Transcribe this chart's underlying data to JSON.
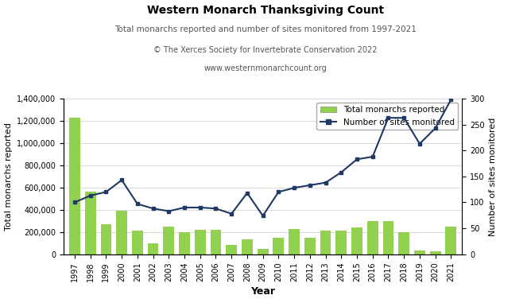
{
  "title": "Western Monarch Thanksgiving Count",
  "subtitle": "Total monarchs reported and number of sites monitored from 1997-2021",
  "credit_line1": "© The Xerces Society for Invertebrate Conservation 2022",
  "credit_line2": "www.westernmonarchcount.org",
  "years": [
    1997,
    1998,
    1999,
    2000,
    2001,
    2002,
    2003,
    2004,
    2005,
    2006,
    2007,
    2008,
    2009,
    2010,
    2011,
    2012,
    2013,
    2014,
    2015,
    2016,
    2017,
    2018,
    2019,
    2020,
    2021
  ],
  "monarchs": [
    1230000,
    560000,
    270000,
    390000,
    215000,
    95000,
    250000,
    200000,
    220000,
    220000,
    80000,
    130000,
    50000,
    145000,
    225000,
    150000,
    215000,
    215000,
    240000,
    295000,
    300000,
    195000,
    30000,
    28000,
    250000
  ],
  "sites": [
    100,
    113,
    120,
    143,
    97,
    88,
    83,
    90,
    90,
    88,
    78,
    118,
    74,
    120,
    128,
    133,
    138,
    158,
    183,
    188,
    263,
    263,
    213,
    243,
    298
  ],
  "bar_color": "#92d050",
  "line_color": "#1f3864",
  "ylabel_left": "Total monarchs reported",
  "ylabel_right": "Number of sites monitored",
  "xlabel": "Year",
  "ylim_left": [
    0,
    1400000
  ],
  "ylim_right": [
    0,
    300
  ],
  "yticks_left": [
    0,
    200000,
    400000,
    600000,
    800000,
    1000000,
    1200000,
    1400000
  ],
  "yticks_right": [
    0,
    50,
    100,
    150,
    200,
    250,
    300
  ],
  "bg_color": "#ffffff",
  "legend_monarchs": "Total monarchs reported",
  "legend_sites": "Number of sites monitored",
  "title_fontsize": 10,
  "subtitle_fontsize": 7.5,
  "credit_fontsize": 7,
  "axis_label_fontsize": 8,
  "tick_fontsize": 7,
  "xlabel_fontsize": 9
}
